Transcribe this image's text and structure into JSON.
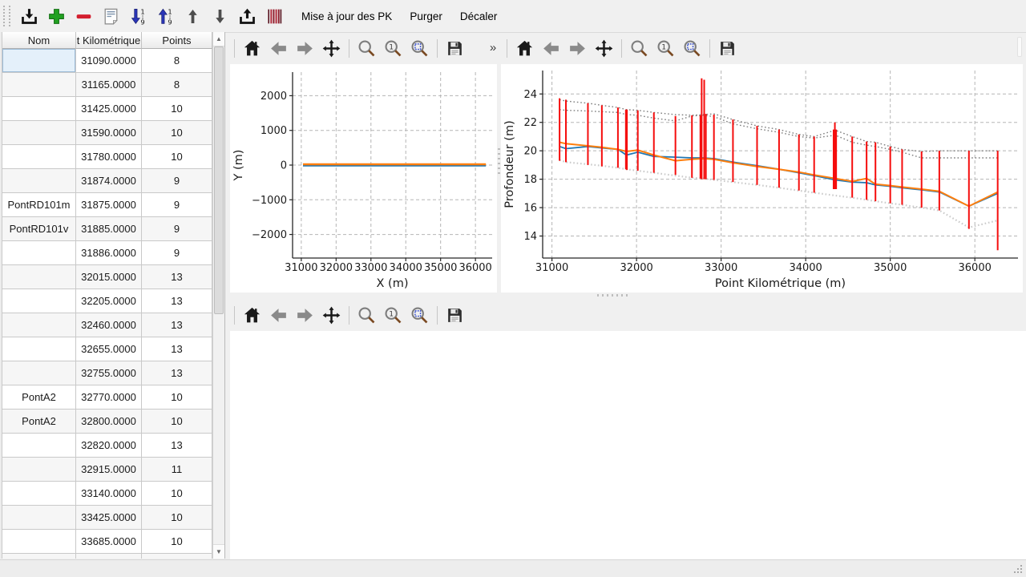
{
  "main_toolbar": {
    "icon_buttons": [
      "import-icon",
      "add-icon",
      "remove-icon",
      "document-icon",
      "sort-descending-icon",
      "sort-ascending-icon",
      "arrow-up-icon",
      "arrow-down-icon",
      "export-icon",
      "stripes-icon"
    ],
    "text_buttons": [
      "Mise à jour des PK",
      "Purger",
      "Décaler"
    ]
  },
  "pk_table": {
    "columns": [
      "Nom",
      "t Kilométrique",
      "Points"
    ],
    "selected_cell": {
      "row": 0,
      "column": "Nom"
    },
    "rows": [
      {
        "nom": "",
        "pk": "31090.0000",
        "points": "8"
      },
      {
        "nom": "",
        "pk": "31165.0000",
        "points": "8"
      },
      {
        "nom": "",
        "pk": "31425.0000",
        "points": "10"
      },
      {
        "nom": "",
        "pk": "31590.0000",
        "points": "10"
      },
      {
        "nom": "",
        "pk": "31780.0000",
        "points": "10"
      },
      {
        "nom": "",
        "pk": "31874.0000",
        "points": "9"
      },
      {
        "nom": "PontRD101m",
        "pk": "31875.0000",
        "points": "9"
      },
      {
        "nom": "PontRD101v",
        "pk": "31885.0000",
        "points": "9"
      },
      {
        "nom": "",
        "pk": "31886.0000",
        "points": "9"
      },
      {
        "nom": "",
        "pk": "32015.0000",
        "points": "13"
      },
      {
        "nom": "",
        "pk": "32205.0000",
        "points": "13"
      },
      {
        "nom": "",
        "pk": "32460.0000",
        "points": "13"
      },
      {
        "nom": "",
        "pk": "32655.0000",
        "points": "13"
      },
      {
        "nom": "",
        "pk": "32755.0000",
        "points": "13"
      },
      {
        "nom": "PontA2",
        "pk": "32770.0000",
        "points": "10"
      },
      {
        "nom": "PontA2",
        "pk": "32800.0000",
        "points": "10"
      },
      {
        "nom": "",
        "pk": "32820.0000",
        "points": "13"
      },
      {
        "nom": "",
        "pk": "32915.0000",
        "points": "11"
      },
      {
        "nom": "",
        "pk": "33140.0000",
        "points": "10"
      },
      {
        "nom": "",
        "pk": "33425.0000",
        "points": "10"
      },
      {
        "nom": "",
        "pk": "33685.0000",
        "points": "10"
      },
      {
        "nom": "",
        "pk": "",
        "points": ""
      }
    ]
  },
  "plot_toolbar": {
    "icons": [
      "home",
      "back",
      "forward",
      "pan",
      "zoom",
      "zoom-one",
      "zoom-rect",
      "save"
    ],
    "overflow_chevron": "»"
  },
  "colors": {
    "series_blue": "#1f77b4",
    "series_orange": "#ff7f0e",
    "bars_red": "#f50d0d",
    "envelope_dark": "#7d7d7d",
    "envelope_light": "#cbcbcb",
    "grid": "#b5b5b5",
    "spine": "#262626",
    "selection_bg": "#e4f0fa",
    "accent_green": "#21a121",
    "accent_red": "#d31f2f",
    "accent_blue": "#2a35b8"
  },
  "chart_data": [
    {
      "type": "line",
      "title": "",
      "xlabel": "X (m)",
      "ylabel": "Y (m)",
      "xlim": [
        30750,
        36480
      ],
      "ylim": [
        -2680,
        2680
      ],
      "xticks": [
        31000,
        32000,
        33000,
        34000,
        35000,
        36000
      ],
      "yticks": [
        -2000,
        -1000,
        0,
        1000,
        2000
      ],
      "grid": true,
      "legend": null,
      "series": [
        {
          "name": "trace-plan-bleu",
          "color": "#1f77b4",
          "width": 2,
          "x": [
            31050,
            36300
          ],
          "y": [
            -18,
            -18
          ]
        },
        {
          "name": "trace-plan-orange",
          "color": "#ff7f0e",
          "width": 2.4,
          "x": [
            31050,
            36300
          ],
          "y": [
            22,
            22
          ]
        }
      ]
    },
    {
      "type": "line",
      "title": "",
      "xlabel": "Point Kilométrique (m)",
      "ylabel": "Profondeur (m)",
      "xlim": [
        30890,
        36510
      ],
      "ylim": [
        12.45,
        25.65
      ],
      "xticks": [
        31000,
        32000,
        33000,
        34000,
        35000,
        36000
      ],
      "yticks": [
        14,
        16,
        18,
        20,
        22,
        24
      ],
      "grid": true,
      "legend": null,
      "x": [
        31090,
        31165,
        31425,
        31590,
        31780,
        31880,
        32015,
        32205,
        32460,
        32655,
        32790,
        32915,
        33140,
        33425,
        33685,
        33920,
        34100,
        34350,
        34550,
        34720,
        34825,
        35000,
        35140,
        35370,
        35580,
        35930,
        36270
      ],
      "series": [
        {
          "name": "enveloppe-haute-pointillee-1",
          "color": "#7d7d7d",
          "style": "dotted",
          "width": 1.4,
          "y": [
            23.6,
            23.5,
            23.35,
            23.2,
            23.05,
            22.9,
            22.85,
            22.7,
            22.55,
            22.5,
            22.55,
            22.6,
            22.2,
            21.75,
            21.5,
            21.15,
            21.0,
            21.45,
            21.0,
            20.65,
            20.6,
            20.3,
            20.1,
            19.95,
            20.0,
            20.0,
            20.0
          ]
        },
        {
          "name": "enveloppe-haute-pointillee-2",
          "color": "#7d7d7d",
          "style": "dotted",
          "width": 1.4,
          "y": [
            22.9,
            22.85,
            22.8,
            22.75,
            22.7,
            22.55,
            22.5,
            22.3,
            22.1,
            22.45,
            22.5,
            22.4,
            21.9,
            21.55,
            21.3,
            21.0,
            20.9,
            21.1,
            20.6,
            20.4,
            20.3,
            20.1,
            19.9,
            19.5,
            19.5,
            19.5,
            19.5
          ]
        },
        {
          "name": "enveloppe-basse-pointillee-claire",
          "color": "#cbcbcb",
          "style": "dotted",
          "width": 2.2,
          "y": [
            19.35,
            19.2,
            19.05,
            18.95,
            18.8,
            18.7,
            18.6,
            18.45,
            18.25,
            18.1,
            18.05,
            17.95,
            17.8,
            17.6,
            17.4,
            17.2,
            17.05,
            16.85,
            16.7,
            16.55,
            16.45,
            16.3,
            16.2,
            16.0,
            15.8,
            14.6,
            15.1
          ]
        },
        {
          "name": "profondeur-moyenne-bleue",
          "color": "#1f77b4",
          "width": 1.8,
          "y": [
            20.3,
            20.15,
            20.3,
            20.2,
            20.1,
            19.7,
            19.9,
            19.6,
            19.55,
            19.5,
            19.5,
            19.45,
            19.2,
            18.95,
            18.7,
            18.45,
            18.25,
            17.95,
            17.8,
            17.75,
            17.6,
            17.5,
            17.4,
            17.25,
            17.1,
            16.1,
            17.0
          ]
        },
        {
          "name": "profondeur-moyenne-orange",
          "color": "#ff7f0e",
          "width": 2,
          "y": [
            20.6,
            20.5,
            20.35,
            20.25,
            20.1,
            19.95,
            20.05,
            19.7,
            19.3,
            19.4,
            19.45,
            19.4,
            19.15,
            18.9,
            18.7,
            18.5,
            18.3,
            18.05,
            17.85,
            18.05,
            17.65,
            17.55,
            17.45,
            17.3,
            17.15,
            16.1,
            17.1
          ]
        }
      ],
      "bars": {
        "name": "profils-verticaux-rouges",
        "color": "#f50d0d",
        "width": 2,
        "data": [
          [
            31090,
            19.3,
            23.7
          ],
          [
            31165,
            19.2,
            23.6
          ],
          [
            31425,
            19.0,
            23.35
          ],
          [
            31590,
            18.9,
            23.2
          ],
          [
            31780,
            18.8,
            23.05
          ],
          [
            31874,
            18.7,
            22.9
          ],
          [
            31886,
            18.65,
            22.9
          ],
          [
            32015,
            18.6,
            22.85
          ],
          [
            32205,
            18.45,
            22.7
          ],
          [
            32460,
            18.3,
            22.45
          ],
          [
            32655,
            18.1,
            22.5
          ],
          [
            32755,
            18.05,
            22.5
          ],
          [
            32770,
            18.0,
            25.1
          ],
          [
            32800,
            18.0,
            25.0
          ],
          [
            32820,
            18.0,
            22.6
          ],
          [
            32915,
            17.95,
            22.55
          ],
          [
            33140,
            17.8,
            22.2
          ],
          [
            33425,
            17.6,
            21.75
          ],
          [
            33685,
            17.4,
            21.5
          ],
          [
            33920,
            17.2,
            21.15
          ],
          [
            34100,
            17.05,
            21.0
          ],
          [
            34330,
            17.3,
            21.5
          ],
          [
            34345,
            17.3,
            22.0
          ],
          [
            34360,
            17.3,
            21.5
          ],
          [
            34550,
            16.7,
            21.0
          ],
          [
            34720,
            16.55,
            20.65
          ],
          [
            34825,
            16.45,
            20.6
          ],
          [
            35000,
            16.3,
            20.3
          ],
          [
            35140,
            16.2,
            20.1
          ],
          [
            35370,
            16.0,
            19.95
          ],
          [
            35580,
            15.8,
            20.0
          ],
          [
            35930,
            14.5,
            20.0
          ],
          [
            36270,
            13.0,
            20.0
          ]
        ]
      }
    },
    {
      "type": "line",
      "title": "",
      "note": "troisième zone de tracé vide",
      "series": []
    }
  ],
  "status_bar": {
    "text": ""
  }
}
